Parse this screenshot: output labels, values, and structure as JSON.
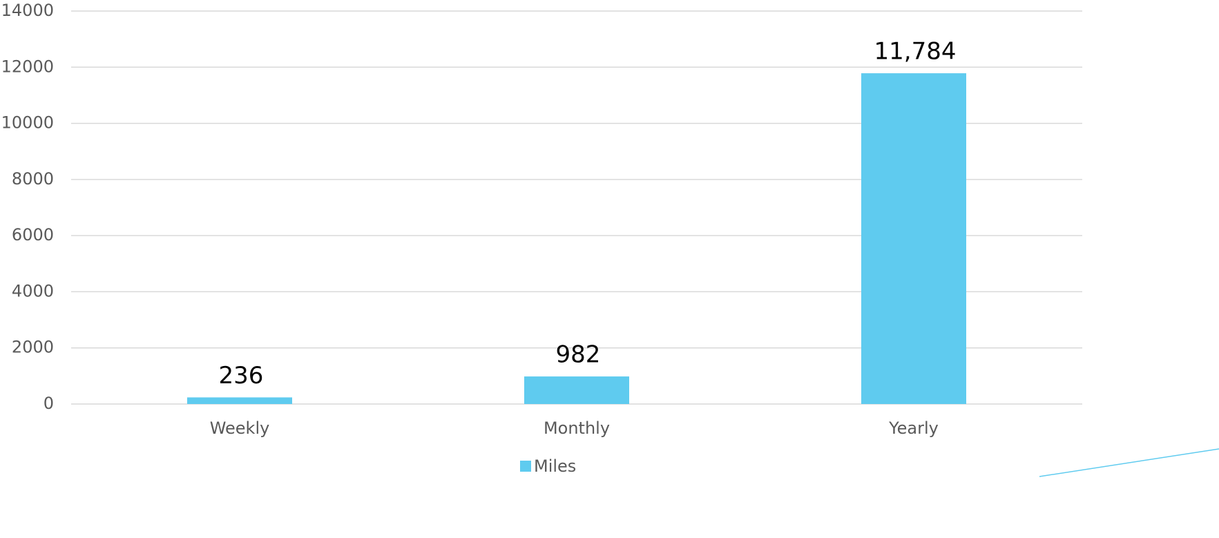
{
  "chart_data": {
    "type": "bar",
    "categories": [
      "Weekly",
      "Monthly",
      "Yearly"
    ],
    "series": [
      {
        "name": "Miles",
        "color": "#5fcbef",
        "values": [
          236,
          982,
          11784
        ],
        "value_labels": [
          "236",
          "982",
          "11,784"
        ]
      }
    ],
    "ylim": [
      0,
      14000
    ],
    "yticks": [
      0,
      2000,
      4000,
      6000,
      8000,
      10000,
      12000,
      14000
    ],
    "grid": true,
    "legend": "bottom"
  }
}
